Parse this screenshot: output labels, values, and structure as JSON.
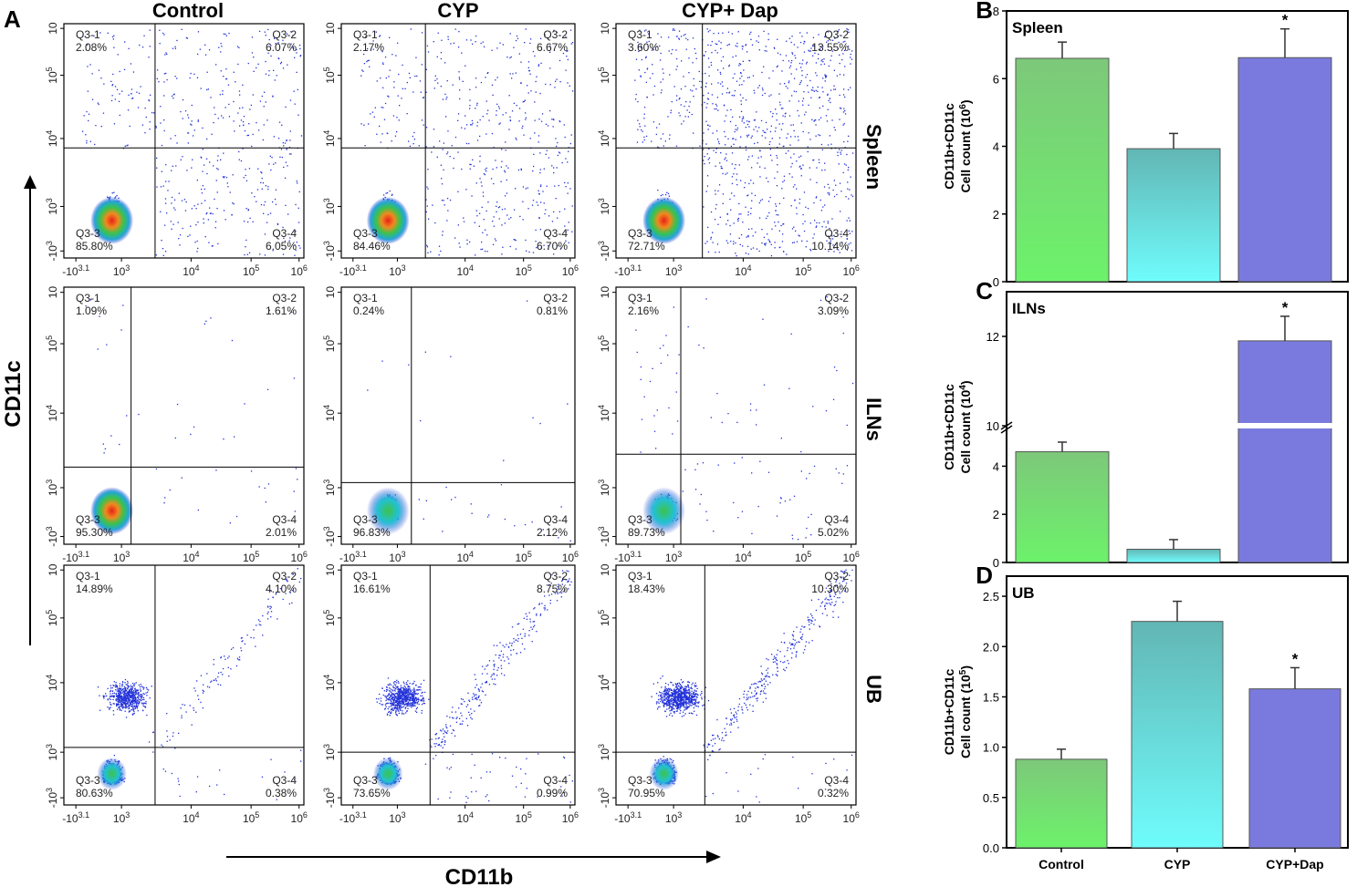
{
  "panel_a": {
    "letter": "A",
    "columns": [
      "Control",
      "CYP",
      "CYP+ Dap"
    ],
    "rows": [
      "Spleen",
      "ILNs",
      "UB"
    ],
    "x_axis_title": "CD11b",
    "y_axis_title": "CD11c",
    "x_ticks": [
      "-10^3.1",
      "10^3",
      "10^4",
      "10^5",
      "10^6"
    ],
    "y_ticks": [
      "-10^3",
      "10^3",
      "10^4",
      "10^5",
      "10"
    ],
    "quadrant_names": [
      "Q3-1",
      "Q3-2",
      "Q3-3",
      "Q3-4"
    ]
  },
  "chart_data": [
    {
      "type": "scatter",
      "subtype": "flow-cytometry-quadrant-grid",
      "xlabel": "CD11b",
      "ylabel": "CD11c",
      "x_scale": "log",
      "y_scale": "log",
      "panels": [
        {
          "row": "Spleen",
          "column": "Control",
          "q1": "2.08%",
          "q2": "6.07%",
          "q3": "85.80%",
          "q4": "6.05%"
        },
        {
          "row": "Spleen",
          "column": "CYP",
          "q1": "2.17%",
          "q2": "6.67%",
          "q3": "84.46%",
          "q4": "6.70%"
        },
        {
          "row": "Spleen",
          "column": "CYP+ Dap",
          "q1": "3.60%",
          "q2": "13.55%",
          "q3": "72.71%",
          "q4": "10.14%"
        },
        {
          "row": "ILNs",
          "column": "Control",
          "q1": "1.09%",
          "q2": "1.61%",
          "q3": "95.30%",
          "q4": "2.01%"
        },
        {
          "row": "ILNs",
          "column": "CYP",
          "q1": "0.24%",
          "q2": "0.81%",
          "q3": "96.83%",
          "q4": "2.12%"
        },
        {
          "row": "ILNs",
          "column": "CYP+ Dap",
          "q1": "2.16%",
          "q2": "3.09%",
          "q3": "89.73%",
          "q4": "5.02%"
        },
        {
          "row": "UB",
          "column": "Control",
          "q1": "14.89%",
          "q2": "4.10%",
          "q3": "80.63%",
          "q4": "0.38%"
        },
        {
          "row": "UB",
          "column": "CYP",
          "q1": "16.61%",
          "q2": "8.75%",
          "q3": "73.65%",
          "q4": "0.99%"
        },
        {
          "row": "UB",
          "column": "CYP+ Dap",
          "q1": "18.43%",
          "q2": "10.30%",
          "q3": "70.95%",
          "q4": "0.32%"
        }
      ]
    },
    {
      "type": "bar",
      "letter": "B",
      "title": "Spleen",
      "ylabel_line1": "CD11b+CD11c",
      "ylabel_line2": "Cell count (10^6)",
      "categories": [
        "Control",
        "CYP",
        "CYP+Dap"
      ],
      "values": [
        6.6,
        3.93,
        6.62
      ],
      "errors": [
        0.48,
        0.45,
        0.85
      ],
      "significance": [
        "",
        "",
        "*"
      ],
      "ylim": [
        0,
        8
      ],
      "yticks": [
        0,
        2,
        4,
        6,
        8
      ],
      "ytick_labels": [
        "0",
        "2",
        "4",
        "6",
        "8"
      ]
    },
    {
      "type": "bar",
      "letter": "C",
      "title": "ILNs",
      "ylabel_line1": "CD11b+CD11c",
      "ylabel_line2": "Cell count (10^4)",
      "categories": [
        "Control",
        "CYP",
        "CYP+Dap"
      ],
      "values": [
        4.6,
        0.55,
        11.9
      ],
      "errors": [
        0.4,
        0.4,
        0.55
      ],
      "significance": [
        "",
        "",
        "*"
      ],
      "axis_break": {
        "lower": [
          0,
          5
        ],
        "upper": [
          10,
          13
        ]
      },
      "ytick_labels": [
        "0",
        "2",
        "4",
        "10",
        "12"
      ]
    },
    {
      "type": "bar",
      "letter": "D",
      "title": "UB",
      "ylabel_line1": "CD11b+CD11c",
      "ylabel_line2": "Cell count (10^5)",
      "categories": [
        "Control",
        "CYP",
        "CYP+Dap"
      ],
      "values": [
        0.88,
        2.25,
        1.58
      ],
      "errors": [
        0.1,
        0.2,
        0.21
      ],
      "significance": [
        "",
        "",
        "*"
      ],
      "ylim": [
        0,
        2.7
      ],
      "yticks": [
        0,
        0.5,
        1.0,
        1.5,
        2.0,
        2.5
      ],
      "ytick_labels": [
        "0.0",
        "0.5",
        "1.0",
        "1.5",
        "2.0",
        "2.5"
      ]
    }
  ],
  "colors": {
    "control_top": "#7dc87a",
    "control_bottom": "#6cf26a",
    "cyp_top": "#62b6b4",
    "cyp_bottom": "#6ffcfc",
    "dap": "#7a7ade",
    "dot": "#2231d8"
  }
}
